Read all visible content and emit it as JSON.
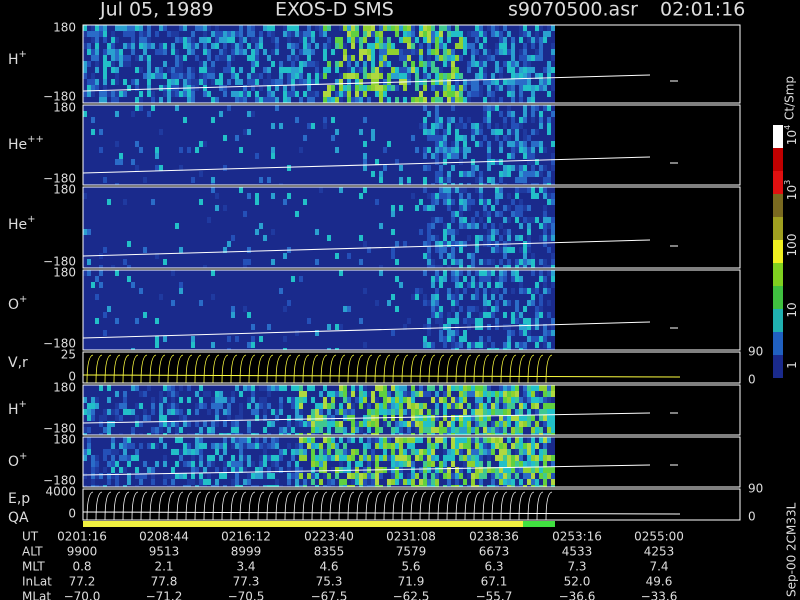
{
  "header": {
    "date": "Jul 05, 1989",
    "instrument": "EXOS-D SMS",
    "file": "s9070500.asr",
    "time": "02:01:16"
  },
  "panels": [
    {
      "label": "H",
      "sup": "+",
      "ticks": [
        "180",
        "−180"
      ]
    },
    {
      "label": "He",
      "sup": "++",
      "ticks": [
        "180",
        "−180"
      ]
    },
    {
      "label": "He",
      "sup": "+",
      "ticks": [
        "180",
        "−180"
      ]
    },
    {
      "label": "O",
      "sup": "+",
      "ticks": [
        "180",
        "−180"
      ]
    },
    {
      "label": "V,r",
      "ticks": [
        "25",
        "0"
      ],
      "right_ticks": [
        "90",
        "0"
      ]
    },
    {
      "label": "H",
      "sup": "+",
      "ticks": [
        "180",
        "−180"
      ]
    },
    {
      "label": "O",
      "sup": "+",
      "ticks": [
        "180",
        "−180"
      ]
    },
    {
      "label": "E,p",
      "ticks": [
        "4000",
        "0"
      ],
      "right_ticks": [
        "90",
        "0"
      ]
    },
    {
      "label": "QA"
    }
  ],
  "colorbar": {
    "title": "Ct/Smp",
    "ticks": [
      {
        "base": "10",
        "exp": "4"
      },
      {
        "base": "10",
        "exp": "3"
      },
      {
        "base": "100"
      },
      {
        "base": "10"
      },
      {
        "base": "1"
      }
    ]
  },
  "table": {
    "rows": [
      {
        "label": "UT",
        "cells": [
          "0201:16",
          "0208:44",
          "0216:12",
          "0223:40",
          "0231:08",
          "0238:36",
          "0253:16",
          "0255:00"
        ]
      },
      {
        "label": "ALT",
        "cells": [
          "9900",
          "9513",
          "8999",
          "8355",
          "7579",
          "6673",
          "4533",
          "4253"
        ]
      },
      {
        "label": "MLT",
        "cells": [
          "0.8",
          "2.1",
          "3.4",
          "4.6",
          "5.6",
          "6.3",
          "7.3",
          "7.4"
        ]
      },
      {
        "label": "InLat",
        "cells": [
          "77.2",
          "77.8",
          "77.3",
          "75.3",
          "71.9",
          "67.1",
          "52.0",
          "49.6"
        ]
      },
      {
        "label": "MLat",
        "cells": [
          "−70.0",
          "−71.2",
          "−70.5",
          "−67.5",
          "−62.5",
          "−55.7",
          "−36.6",
          "−33.6"
        ]
      }
    ]
  },
  "footer": {
    "stamp": "Sep-00 2CM33L"
  }
}
